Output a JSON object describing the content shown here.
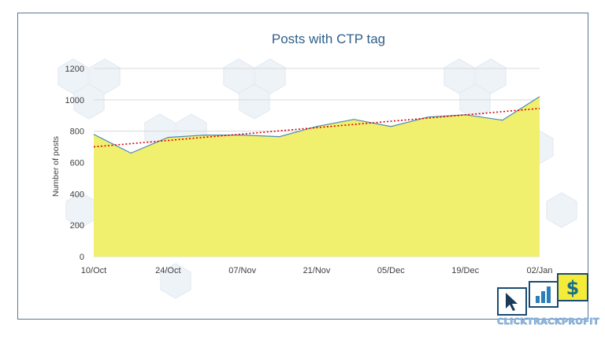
{
  "chart_data": {
    "type": "area",
    "title": "Posts with CTP tag",
    "ylabel": "Number  of posts",
    "xlabel": "",
    "ylim": [
      0,
      1200
    ],
    "yticks": [
      0,
      200,
      400,
      600,
      800,
      1000,
      1200
    ],
    "xtick_labels": [
      "10/Oct",
      "24/Oct",
      "07/Nov",
      "21/Nov",
      "05/Dec",
      "19/Dec",
      "02/Jan"
    ],
    "series": [
      {
        "values": [
          780,
          660,
          760,
          775,
          775,
          765,
          830,
          875,
          830,
          890,
          905,
          870,
          1020
        ]
      }
    ],
    "trendline": {
      "style": "linear",
      "start": 700,
      "end": 945
    },
    "grid": true,
    "colors": {
      "area_fill": "#f0ef6e",
      "area_line": "#4a8bb5",
      "trendline": "#e00000",
      "grid": "#d9d9d9",
      "title": "#2f5f8a",
      "frame": "#5a7896"
    }
  },
  "logo": {
    "text": "CLICKTRACKPROFIT",
    "dollar_glyph": "$"
  }
}
